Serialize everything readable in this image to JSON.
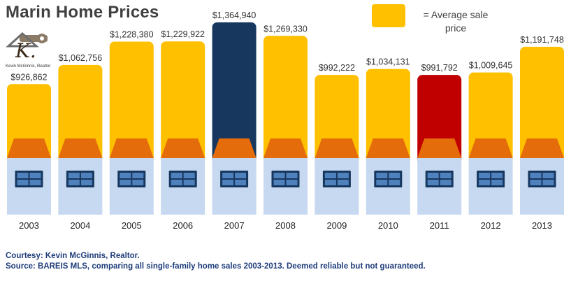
{
  "title": "Marin Home Prices",
  "logo": {
    "letter": "K.",
    "caption": "Kevin McGinnis, Realtor",
    "icon": "house-key-monogram-icon"
  },
  "legend": {
    "label": "= Average sale price",
    "color": "#FFC000"
  },
  "colors": {
    "bar": "#FFC000",
    "bar_peak": "#17375E",
    "bar_low": "#C00000",
    "roof": "#E46C0A",
    "house": "#C6D9F1",
    "window_frame": "#17375E",
    "window_pane": "#4F81BD"
  },
  "chart_data": {
    "type": "bar",
    "title": "Marin Home Prices",
    "xlabel": "",
    "ylabel": "",
    "categories": [
      "2003",
      "2004",
      "2005",
      "2006",
      "2007",
      "2008",
      "2009",
      "2010",
      "2011",
      "2012",
      "2013"
    ],
    "values": [
      926862,
      1062756,
      1228380,
      1229922,
      1364940,
      1269330,
      992222,
      1034131,
      991792,
      1009645,
      1191748
    ],
    "value_labels": [
      "$926,862",
      "$1,062,756",
      "$1,228,380",
      "$1,229,922",
      "$1,364,940",
      "$1,269,330",
      "$992,222",
      "$1,034,131",
      "$991,792",
      "$1,009,645",
      "$1,191,748"
    ],
    "highlight": {
      "2007": "bar_peak",
      "2011": "bar_low"
    },
    "legend": "top-right",
    "grid": false
  },
  "footer": {
    "courtesy": "Courtesy: Kevin McGinnis, Realtor.",
    "source": "Source: BAREIS MLS, comparing all single-family home sales 2003-2013. Deemed reliable but not guaranteed."
  }
}
